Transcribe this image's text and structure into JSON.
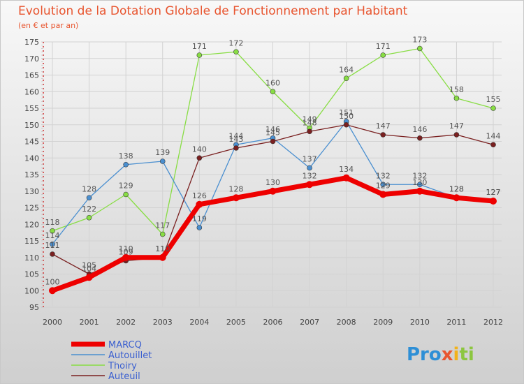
{
  "chart_data": {
    "type": "line",
    "title": "Evolution de la Dotation Globale de Fonctionnement par Habitant",
    "subtitle": "(en € et par an)",
    "xlabel": "",
    "ylabel": "",
    "ylim": [
      95,
      175
    ],
    "y_ticks": [
      95,
      100,
      105,
      110,
      115,
      120,
      125,
      130,
      135,
      140,
      145,
      150,
      155,
      160,
      165,
      170,
      175
    ],
    "grid": true,
    "legend_position": "bottom-left",
    "categories": [
      "2000",
      "2001",
      "2002",
      "2003",
      "2004",
      "2005",
      "2006",
      "2007",
      "2008",
      "2009",
      "2010",
      "2011",
      "2012"
    ],
    "series": [
      {
        "name": "MARCQ",
        "color": "#ee0000",
        "values": [
          100,
          104,
          110,
          110,
          126,
          128,
          130,
          132,
          134,
          129,
          130,
          128,
          127
        ]
      },
      {
        "name": "Autouillet",
        "color": "#4a8fd0",
        "values": [
          114,
          128,
          138,
          139,
          119,
          144,
          146,
          137,
          151,
          132,
          132,
          128,
          127
        ]
      },
      {
        "name": "Thoiry",
        "color": "#88dd44",
        "values": [
          118,
          122,
          129,
          117,
          171,
          172,
          160,
          149,
          164,
          171,
          173,
          158,
          155
        ]
      },
      {
        "name": "Auteuil",
        "color": "#7a2020",
        "values": [
          111,
          105,
          109,
          110,
          140,
          143,
          145,
          148,
          150,
          147,
          146,
          147,
          144
        ]
      }
    ]
  },
  "logo": {
    "text": "Proxiti"
  }
}
